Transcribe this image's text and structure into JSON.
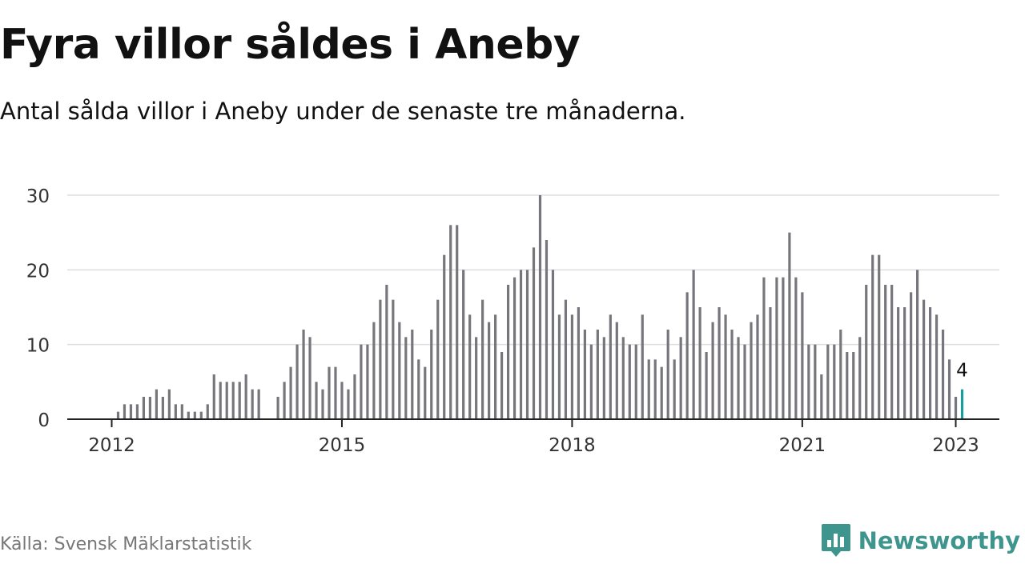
{
  "header": {
    "title": "Fyra villor såldes i Aneby",
    "subtitle": "Antal sålda villor i Aneby under de senaste tre månaderna."
  },
  "footer": {
    "source": "Källa: Svensk Mäklarstatistik",
    "brand": "Newsworthy"
  },
  "colors": {
    "bar": "#77767c",
    "highlight": "#1a9e9a",
    "grid": "#dddddd",
    "axis": "#222222",
    "brand": "#3e958d"
  },
  "chart_data": {
    "type": "bar",
    "title": "Fyra villor såldes i Aneby",
    "ylabel": "",
    "xlabel": "",
    "ylim": [
      0,
      30
    ],
    "yticks": [
      0,
      10,
      20,
      30
    ],
    "xticks": [
      {
        "label": "2012",
        "index": 0
      },
      {
        "label": "2015",
        "index": 36
      },
      {
        "label": "2018",
        "index": 72
      },
      {
        "label": "2021",
        "index": 108
      },
      {
        "label": "2023",
        "index": 132
      }
    ],
    "start": "2012-01",
    "frequency": "monthly",
    "values": [
      null,
      1,
      2,
      2,
      2,
      3,
      3,
      4,
      3,
      4,
      2,
      2,
      1,
      1,
      1,
      2,
      6,
      5,
      5,
      5,
      5,
      6,
      4,
      4,
      null,
      null,
      3,
      5,
      7,
      10,
      12,
      11,
      5,
      4,
      7,
      7,
      5,
      4,
      6,
      10,
      10,
      13,
      16,
      18,
      16,
      13,
      11,
      12,
      8,
      7,
      12,
      16,
      22,
      26,
      26,
      20,
      14,
      11,
      16,
      13,
      14,
      9,
      18,
      19,
      20,
      20,
      23,
      30,
      24,
      20,
      14,
      16,
      14,
      15,
      12,
      10,
      12,
      11,
      14,
      13,
      11,
      10,
      10,
      14,
      8,
      8,
      7,
      12,
      8,
      11,
      17,
      20,
      15,
      9,
      13,
      15,
      14,
      12,
      11,
      10,
      13,
      14,
      19,
      15,
      19,
      19,
      25,
      19,
      17,
      10,
      10,
      6,
      10,
      10,
      12,
      9,
      9,
      11,
      18,
      22,
      22,
      18,
      18,
      15,
      15,
      17,
      20,
      16,
      15,
      14,
      12,
      8,
      3,
      4
    ],
    "highlight_index": 133,
    "highlight_label": "4"
  }
}
